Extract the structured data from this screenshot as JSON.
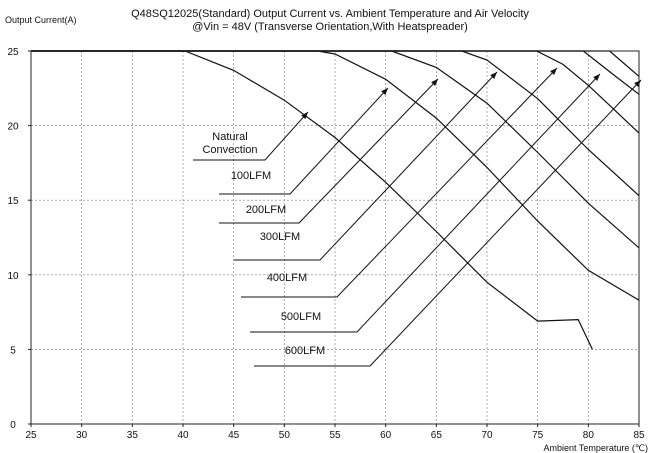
{
  "chart_data": {
    "type": "line",
    "title_lines": [
      "Q48SQ12025(Standard) Output Current vs. Ambient Temperature and Air Velocity",
      "@Vin = 48V (Transverse Orientation,With Heatspreader)"
    ],
    "xlabel": "Ambient Temperature (℃)",
    "ylabel": "Output Current(A)",
    "xlim": [
      25,
      85
    ],
    "ylim": [
      0,
      25
    ],
    "x_ticks": [
      25,
      30,
      35,
      40,
      45,
      50,
      55,
      60,
      65,
      70,
      75,
      80,
      85
    ],
    "y_ticks": [
      0,
      5,
      10,
      15,
      20,
      25
    ],
    "grid": true,
    "series": [
      {
        "name": "Natural Convection",
        "x": [
          25,
          40.2,
          45,
          50,
          55,
          60,
          65,
          70,
          75,
          79,
          80.4
        ],
        "y": [
          25,
          25,
          23.7,
          21.7,
          19.2,
          16.2,
          12.9,
          9.5,
          6.9,
          7.0,
          5.0
        ],
        "label_line1": "Natural",
        "label_line2": "Convection"
      },
      {
        "name": "100LFM",
        "x": [
          25,
          53.3,
          55,
          60,
          65,
          70,
          75,
          80,
          85
        ],
        "y": [
          25,
          25,
          24.8,
          23.1,
          20.5,
          17.2,
          13.6,
          10.3,
          8.3
        ]
      },
      {
        "name": "200LFM",
        "x": [
          25,
          60.6,
          65,
          70,
          75,
          80,
          85
        ],
        "y": [
          25,
          25,
          23.9,
          21.5,
          18.2,
          14.8,
          11.8
        ]
      },
      {
        "name": "300LFM",
        "x": [
          25,
          67.5,
          70,
          75,
          80,
          85
        ],
        "y": [
          25,
          25,
          24.4,
          21.8,
          18.4,
          15.3
        ]
      },
      {
        "name": "400LFM",
        "x": [
          25,
          74.9,
          77.5,
          80,
          82.5,
          85
        ],
        "y": [
          25,
          25,
          24.1,
          22.7,
          21.1,
          19.5
        ]
      },
      {
        "name": "500LFM",
        "x": [
          25,
          79.5,
          82.5,
          85
        ],
        "y": [
          25,
          25,
          23.4,
          22.1
        ]
      },
      {
        "name": "600LFM",
        "x": [
          25,
          82.1,
          85
        ],
        "y": [
          25,
          25,
          23.3
        ]
      }
    ],
    "annotations": [
      {
        "text": "Natural",
        "series": "Natural Convection"
      },
      {
        "text": "Convection",
        "series": "Natural Convection"
      },
      {
        "text": "100LFM",
        "series": "100LFM"
      },
      {
        "text": "200LFM",
        "series": "200LFM"
      },
      {
        "text": "300LFM",
        "series": "300LFM"
      },
      {
        "text": "400LFM",
        "series": "400LFM"
      },
      {
        "text": "500LFM",
        "series": "500LFM"
      },
      {
        "text": "600LFM",
        "series": "600LFM"
      }
    ]
  }
}
